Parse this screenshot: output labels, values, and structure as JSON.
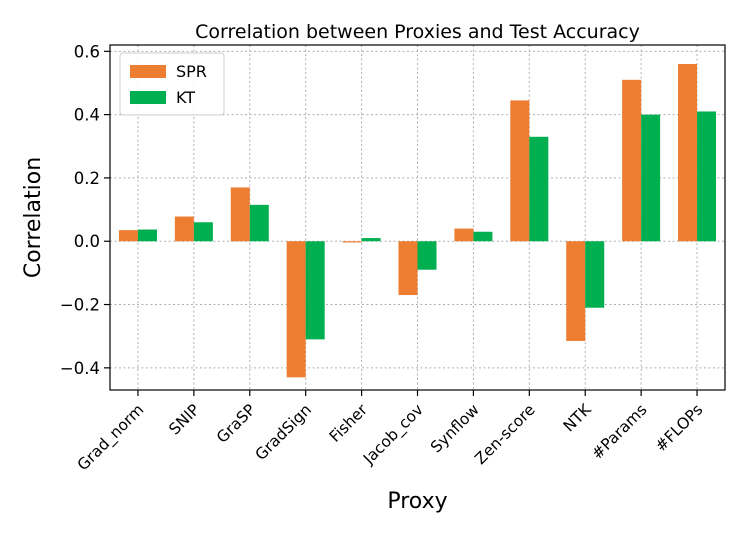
{
  "chart_data": {
    "type": "bar",
    "title": "Correlation between Proxies and Test Accuracy",
    "xlabel": "Proxy",
    "ylabel": "Correlation",
    "ylim": [
      -0.47,
      0.62
    ],
    "yticks": [
      -0.4,
      -0.2,
      0.0,
      0.2,
      0.4,
      0.6
    ],
    "ytick_labels": [
      "−0.4",
      "−0.2",
      "0.0",
      "0.2",
      "0.4",
      "0.6"
    ],
    "grid": true,
    "legend_position": "top-left",
    "categories": [
      "Grad_norm",
      "SNIP",
      "GraSP",
      "GradSign",
      "Fisher",
      "Jacob_cov",
      "Synflow",
      "Zen-score",
      "NTK",
      "#Params",
      "#FLOPs"
    ],
    "series": [
      {
        "name": "SPR",
        "color": "#ed7d31",
        "values": [
          0.035,
          0.078,
          0.17,
          -0.43,
          -0.003,
          -0.17,
          0.04,
          0.445,
          -0.315,
          0.51,
          0.56
        ]
      },
      {
        "name": "KT",
        "color": "#00b050",
        "values": [
          0.037,
          0.06,
          0.115,
          -0.31,
          0.01,
          -0.09,
          0.03,
          0.33,
          -0.21,
          0.4,
          0.41
        ]
      }
    ]
  }
}
